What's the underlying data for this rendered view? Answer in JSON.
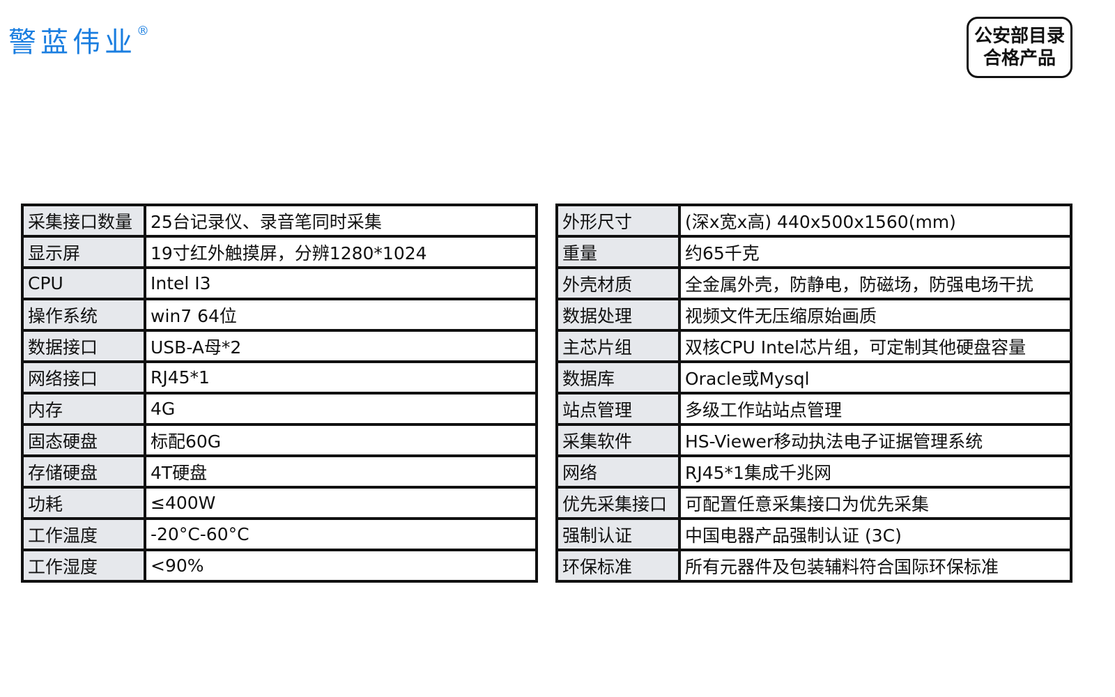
{
  "brand": {
    "name": "警蓝伟业",
    "mark": "®",
    "color": "#1a7ee0"
  },
  "badge": {
    "line1": "公安部目录",
    "line2": "合格产品"
  },
  "left_table": [
    {
      "k": "采集接口数量",
      "v": "25台记录仪、录音笔同时采集"
    },
    {
      "k": "显示屏",
      "v": "19寸红外触摸屏，分辨1280*1024"
    },
    {
      "k": "CPU",
      "v": "Intel I3"
    },
    {
      "k": "操作系统",
      "v": "win7 64位"
    },
    {
      "k": "数据接口",
      "v": "USB-A母*2"
    },
    {
      "k": "网络接口",
      "v": "RJ45*1"
    },
    {
      "k": "内存",
      "v": "4G"
    },
    {
      "k": "固态硬盘",
      "v": "标配60G"
    },
    {
      "k": "存储硬盘",
      "v": "4T硬盘"
    },
    {
      "k": "功耗",
      "v": "≤400W"
    },
    {
      "k": "工作温度",
      "v": "-20°C-60°C"
    },
    {
      "k": "工作湿度",
      "v": "<90%"
    }
  ],
  "right_table": [
    {
      "k": "外形尺寸",
      "v": "(深x宽x高) 440x500x1560(mm)"
    },
    {
      "k": "重量",
      "v": "约65千克"
    },
    {
      "k": "外壳材质",
      "v": "全金属外壳，防静电，防磁场，防强电场干扰"
    },
    {
      "k": "数据处理",
      "v": "视频文件无压缩原始画质"
    },
    {
      "k": "主芯片组",
      "v": "双核CPU Intel芯片组，可定制其他硬盘容量"
    },
    {
      "k": "数据库",
      "v": "Oracle或Mysql"
    },
    {
      "k": "站点管理",
      "v": "多级工作站站点管理"
    },
    {
      "k": "采集软件",
      "v": "HS-Viewer移动执法电子证据管理系统"
    },
    {
      "k": "网络",
      "v": "RJ45*1集成千兆网"
    },
    {
      "k": "优先采集接口",
      "v": "可配置任意采集接口为优先采集"
    },
    {
      "k": "强制认证",
      "v": "中国电器产品强制认证 (3C)"
    },
    {
      "k": "环保标准",
      "v": "所有元器件及包装辅料符合国际环保标准"
    }
  ]
}
